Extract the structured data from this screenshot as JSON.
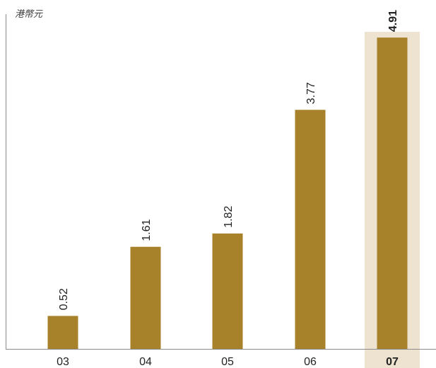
{
  "chart_data": {
    "type": "bar",
    "ylabel": "港幣元",
    "categories": [
      "03",
      "04",
      "05",
      "06",
      "07"
    ],
    "values": [
      0.52,
      1.61,
      1.82,
      3.77,
      4.91
    ],
    "value_labels": [
      "0.52",
      "1.61",
      "1.82",
      "3.77",
      "4.91"
    ],
    "ylim": [
      0,
      5.0
    ],
    "grid": false,
    "highlight_index": 4,
    "colors": {
      "bar": "#A8822A",
      "highlight_background": "#EEE3D0",
      "axis": "#8a8a8a"
    }
  }
}
